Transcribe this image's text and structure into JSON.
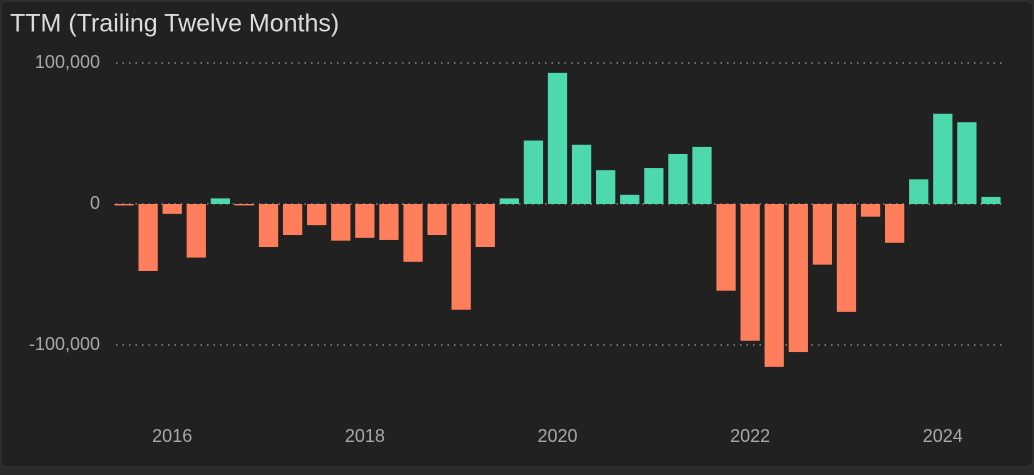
{
  "chart_data": {
    "type": "bar",
    "title": "TTM (Trailing Twelve Months)",
    "categories": [
      null,
      null,
      "2016",
      null,
      null,
      null,
      null,
      null,
      null,
      null,
      "2018",
      null,
      null,
      null,
      null,
      null,
      null,
      null,
      "2020",
      null,
      null,
      null,
      null,
      null,
      null,
      null,
      "2022",
      null,
      null,
      null,
      null,
      null,
      null,
      null,
      "2024",
      null,
      null
    ],
    "values": [
      -1000,
      -47500,
      -7000,
      -38000,
      4000,
      -1000,
      -30500,
      -22000,
      -15000,
      -26000,
      -24000,
      -25500,
      -41000,
      -22000,
      -75000,
      -30500,
      4000,
      45000,
      93000,
      42000,
      24000,
      6500,
      25500,
      35500,
      40500,
      -61500,
      -97000,
      -115500,
      -105000,
      -43000,
      -76500,
      -9000,
      -27500,
      17500,
      64000,
      58000,
      5000
    ],
    "positive_color": "#4dd8ad",
    "negative_color": "#ff7f5c",
    "ylim": [
      -140000,
      110000
    ],
    "yticks": [
      {
        "value": 100000,
        "label": "100,000"
      },
      0,
      {
        "value": -100000,
        "label": "-100,000"
      }
    ],
    "grid": true
  }
}
